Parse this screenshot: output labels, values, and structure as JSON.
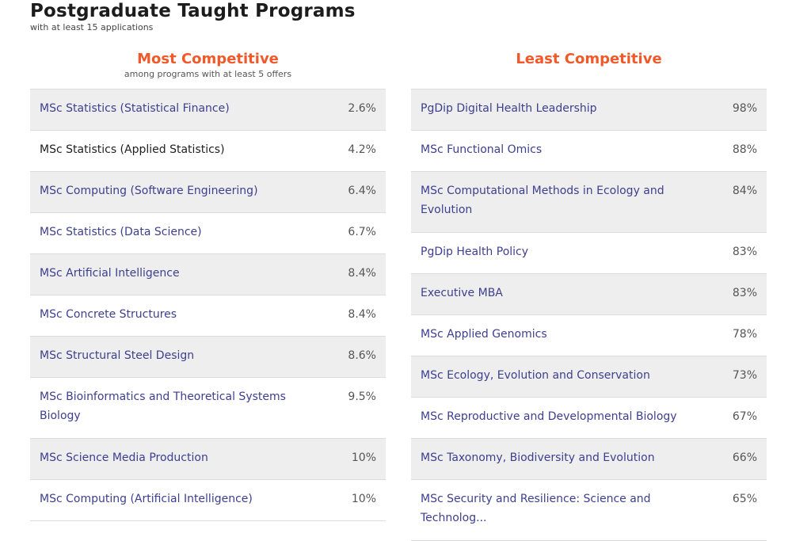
{
  "header": {
    "title": "Postgraduate Taught Programs",
    "subtitle": "with at least 15 applications"
  },
  "most": {
    "title": "Most Competitive",
    "subtitle": "among programs with at least 5 offers",
    "rows": [
      {
        "program": "MSc Statistics (Statistical Finance)",
        "rate": "2.6%"
      },
      {
        "program": "MSc Statistics (Applied Statistics)",
        "rate": "4.2%"
      },
      {
        "program": "MSc Computing (Software Engineering)",
        "rate": "6.4%"
      },
      {
        "program": "MSc Statistics (Data Science)",
        "rate": "6.7%"
      },
      {
        "program": "MSc Artificial Intelligence",
        "rate": "8.4%"
      },
      {
        "program": "MSc Concrete Structures",
        "rate": "8.4%"
      },
      {
        "program": "MSc Structural Steel Design",
        "rate": "8.6%"
      },
      {
        "program": "MSc Bioinformatics and Theoretical Systems Biology",
        "rate": "9.5%"
      },
      {
        "program": "MSc Science Media Production",
        "rate": "10%"
      },
      {
        "program": "MSc Computing (Artificial Intelligence)",
        "rate": "10%"
      }
    ]
  },
  "least": {
    "title": "Least Competitive",
    "rows": [
      {
        "program": "PgDip Digital Health Leadership",
        "rate": "98%"
      },
      {
        "program": "MSc Functional Omics",
        "rate": "88%"
      },
      {
        "program": "MSc Computational Methods in Ecology and Evolution",
        "rate": "84%"
      },
      {
        "program": "PgDip Health Policy",
        "rate": "83%"
      },
      {
        "program": "Executive MBA",
        "rate": "83%"
      },
      {
        "program": "MSc Applied Genomics",
        "rate": "78%"
      },
      {
        "program": "MSc Ecology, Evolution and Conservation",
        "rate": "73%"
      },
      {
        "program": "MSc Reproductive and Developmental Biology",
        "rate": "67%"
      },
      {
        "program": "MSc Taxonomy, Biodiversity and Evolution",
        "rate": "66%"
      },
      {
        "program": "MSc Security and Resilience: Science and Technolog...",
        "rate": "65%"
      }
    ]
  },
  "colors": {
    "accent": "#f0592a",
    "link_text": "#3d3f8f",
    "row_shade": "#eeeeee"
  }
}
